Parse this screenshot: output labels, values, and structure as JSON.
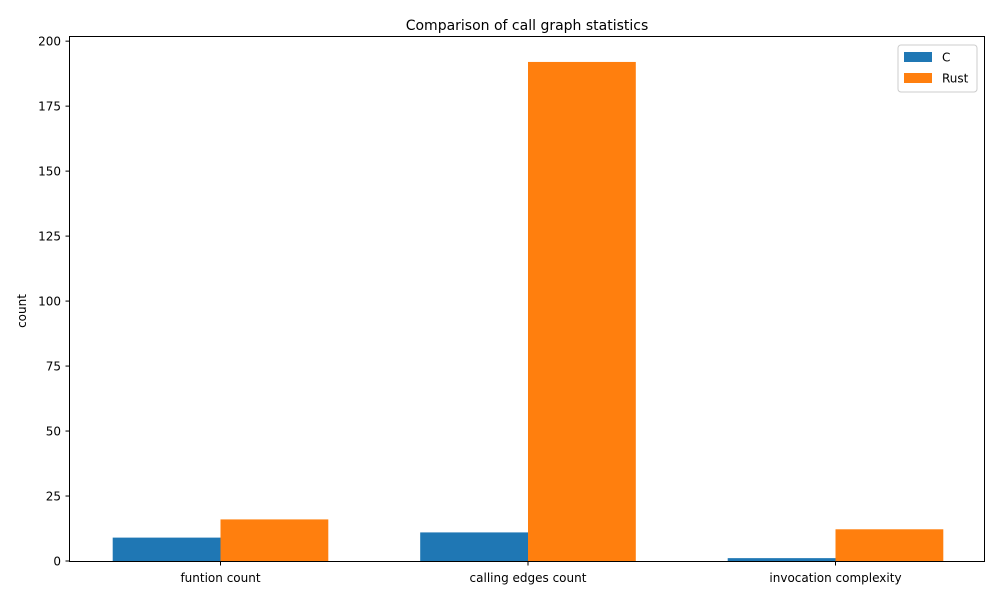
{
  "chart_data": {
    "type": "bar",
    "title": "Comparison of call graph statistics",
    "xlabel": "",
    "ylabel": "count",
    "categories": [
      "funtion count",
      "calling edges count",
      "invocation complexity"
    ],
    "series": [
      {
        "name": "C",
        "values": [
          9,
          11,
          1.1
        ],
        "color": "#1f77b4"
      },
      {
        "name": "Rust",
        "values": [
          16,
          192,
          12.2
        ],
        "color": "#ff7f0e"
      }
    ],
    "ylim": [
      0,
      201.6
    ],
    "yticks": [
      0,
      25,
      50,
      75,
      100,
      125,
      150,
      175,
      200
    ],
    "grid": false,
    "legend_position": "top-right"
  }
}
